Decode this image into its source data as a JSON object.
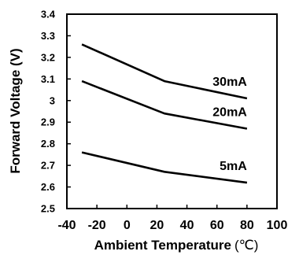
{
  "chart_data": {
    "type": "line",
    "xlabel": "Ambient Temperature",
    "xunit": "(℃)",
    "ylabel": "Forward Voltage (V)",
    "xlim": [
      -40,
      100
    ],
    "ylim": [
      2.5,
      3.4
    ],
    "x_ticks": [
      -40,
      -20,
      0,
      20,
      40,
      60,
      80,
      100
    ],
    "y_ticks": [
      2.5,
      2.6,
      2.7,
      2.8,
      2.9,
      3.0,
      3.1,
      3.2,
      3.3,
      3.4
    ],
    "x_tick_labels": [
      "-40",
      "-20",
      "0",
      "20",
      "40",
      "60",
      "80",
      "100"
    ],
    "y_tick_labels": [
      "2.5",
      "2.6",
      "2.7",
      "2.8",
      "2.9",
      "3",
      "3.1",
      "3.2",
      "3.3",
      "3.4"
    ],
    "grid": false,
    "series": [
      {
        "name": "30mA",
        "x": [
          -30,
          25,
          80
        ],
        "y": [
          3.26,
          3.09,
          3.01
        ]
      },
      {
        "name": "20mA",
        "x": [
          -30,
          25,
          80
        ],
        "y": [
          3.09,
          2.94,
          2.87
        ]
      },
      {
        "name": "5mA",
        "x": [
          -30,
          25,
          80
        ],
        "y": [
          2.76,
          2.67,
          2.62
        ]
      }
    ]
  }
}
